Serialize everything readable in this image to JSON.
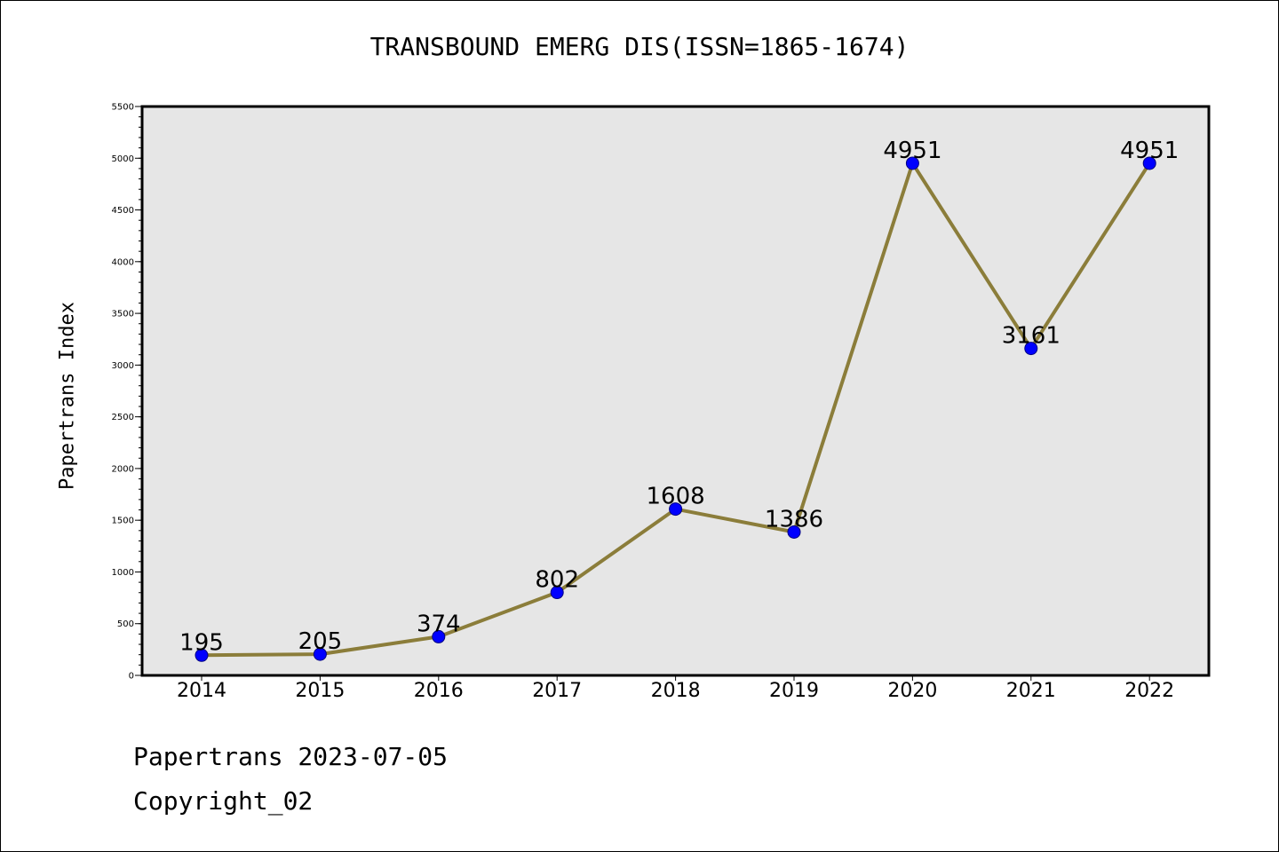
{
  "chart_data": {
    "type": "line",
    "title": "TRANSBOUND EMERG DIS(ISSN=1865-1674)",
    "xlabel": "",
    "ylabel": "Papertrans Index",
    "categories": [
      "2014",
      "2015",
      "2016",
      "2017",
      "2018",
      "2019",
      "2020",
      "2021",
      "2022"
    ],
    "values": [
      195,
      205,
      374,
      802,
      1608,
      1386,
      4951,
      3161,
      4951
    ],
    "data_labels": [
      "195",
      "205",
      "374",
      "802",
      "1608",
      "1386",
      "4951",
      "3161",
      "4951"
    ],
    "ylim": [
      0,
      5500
    ],
    "yticks": [
      "0",
      "500",
      "1000",
      "1500",
      "2000",
      "2500",
      "3000",
      "3500",
      "4000",
      "4500",
      "5000",
      "5500"
    ],
    "grid": false,
    "line_color": "#8b7d3a",
    "marker_color": "#0000ff",
    "plot_background": "#e6e6e6"
  },
  "footer": {
    "date_text": "Papertrans 2023-07-05",
    "copyright_text": "Copyright_02"
  }
}
